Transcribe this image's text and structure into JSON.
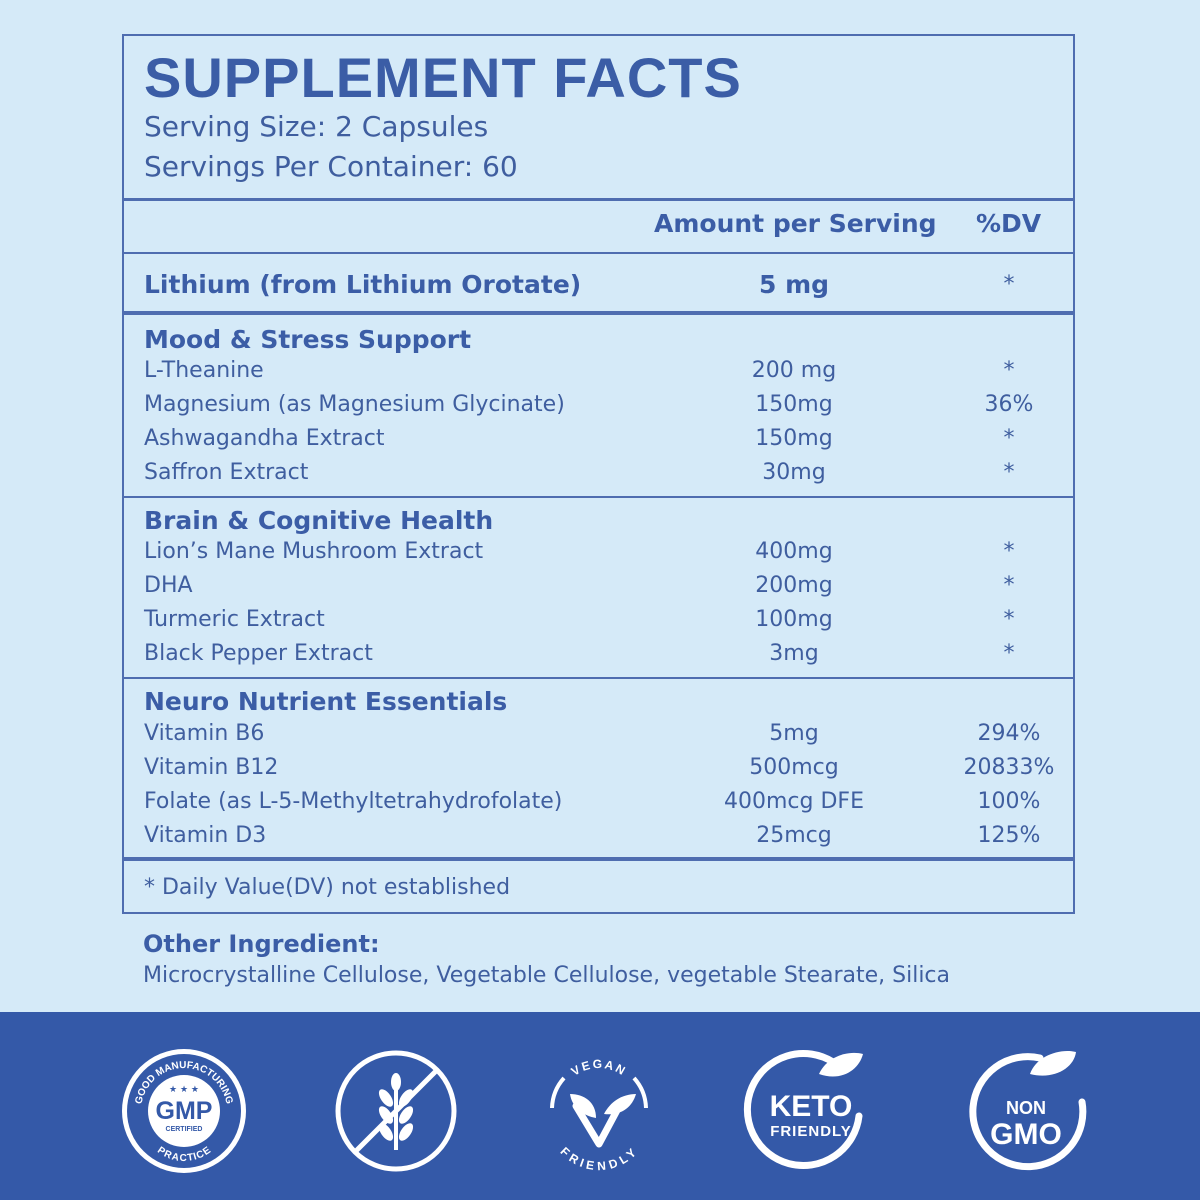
{
  "header": {
    "title": "SUPPLEMENT FACTS",
    "serving_size": "Serving Size: 2 Capsules",
    "servings_per_container": "Servings Per Container: 60"
  },
  "columns": {
    "amount": "Amount per Serving",
    "dv": "%DV"
  },
  "main_row": {
    "name": "Lithium (from Lithium Orotate)",
    "amount": "5 mg",
    "dv": "*"
  },
  "sections": [
    {
      "title": "Mood & Stress Support",
      "rows": [
        {
          "name": "L-Theanine",
          "amount": "200 mg",
          "dv": "*"
        },
        {
          "name": "Magnesium (as Magnesium Glycinate)",
          "amount": "150mg",
          "dv": "36%"
        },
        {
          "name": "Ashwagandha Extract",
          "amount": "150mg",
          "dv": "*"
        },
        {
          "name": "Saffron Extract",
          "amount": "30mg",
          "dv": "*"
        }
      ]
    },
    {
      "title": "Brain & Cognitive Health",
      "rows": [
        {
          "name": "Lion’s Mane Mushroom Extract",
          "amount": "400mg",
          "dv": "*"
        },
        {
          "name": "DHA",
          "amount": "200mg",
          "dv": "*"
        },
        {
          "name": "Turmeric Extract",
          "amount": "100mg",
          "dv": "*"
        },
        {
          "name": "Black Pepper Extract",
          "amount": "3mg",
          "dv": "*"
        }
      ]
    },
    {
      "title": "Neuro Nutrient Essentials",
      "rows": [
        {
          "name": "Vitamin B6",
          "amount": "5mg",
          "dv": "294%"
        },
        {
          "name": "Vitamin B12",
          "amount": "500mcg",
          "dv": "20833%"
        },
        {
          "name": "Folate (as L-5-Methyltetrahydrofolate)",
          "amount": "400mcg DFE",
          "dv": "100%"
        },
        {
          "name": "Vitamin D3",
          "amount": "25mcg",
          "dv": "125%"
        }
      ]
    }
  ],
  "footnote": "* Daily Value(DV) not established",
  "other": {
    "heading": "Other Ingredient:",
    "text": "Microcrystalline Cellulose, Vegetable Cellulose, vegetable Stearate, Silica"
  },
  "badges": {
    "gmp": {
      "top": "GOOD MANUFACTURING",
      "bottom": "PRACTICE",
      "main": "GMP",
      "sub": "CERTIFIED",
      "stars": "★ ★ ★"
    },
    "gluten_free": {
      "icon": "wheat-crossed-icon"
    },
    "vegan": {
      "top": "VEGAN",
      "bottom": "FRIENDLY"
    },
    "keto": {
      "line1": "KETO",
      "line2": "FRIENDLY"
    },
    "non_gmo": {
      "line1": "NON",
      "line2": "GMO"
    }
  },
  "colors": {
    "background": "#d5eaf8",
    "text": "#3b5da6",
    "band": "#3459a8",
    "border": "#4f6db0"
  }
}
